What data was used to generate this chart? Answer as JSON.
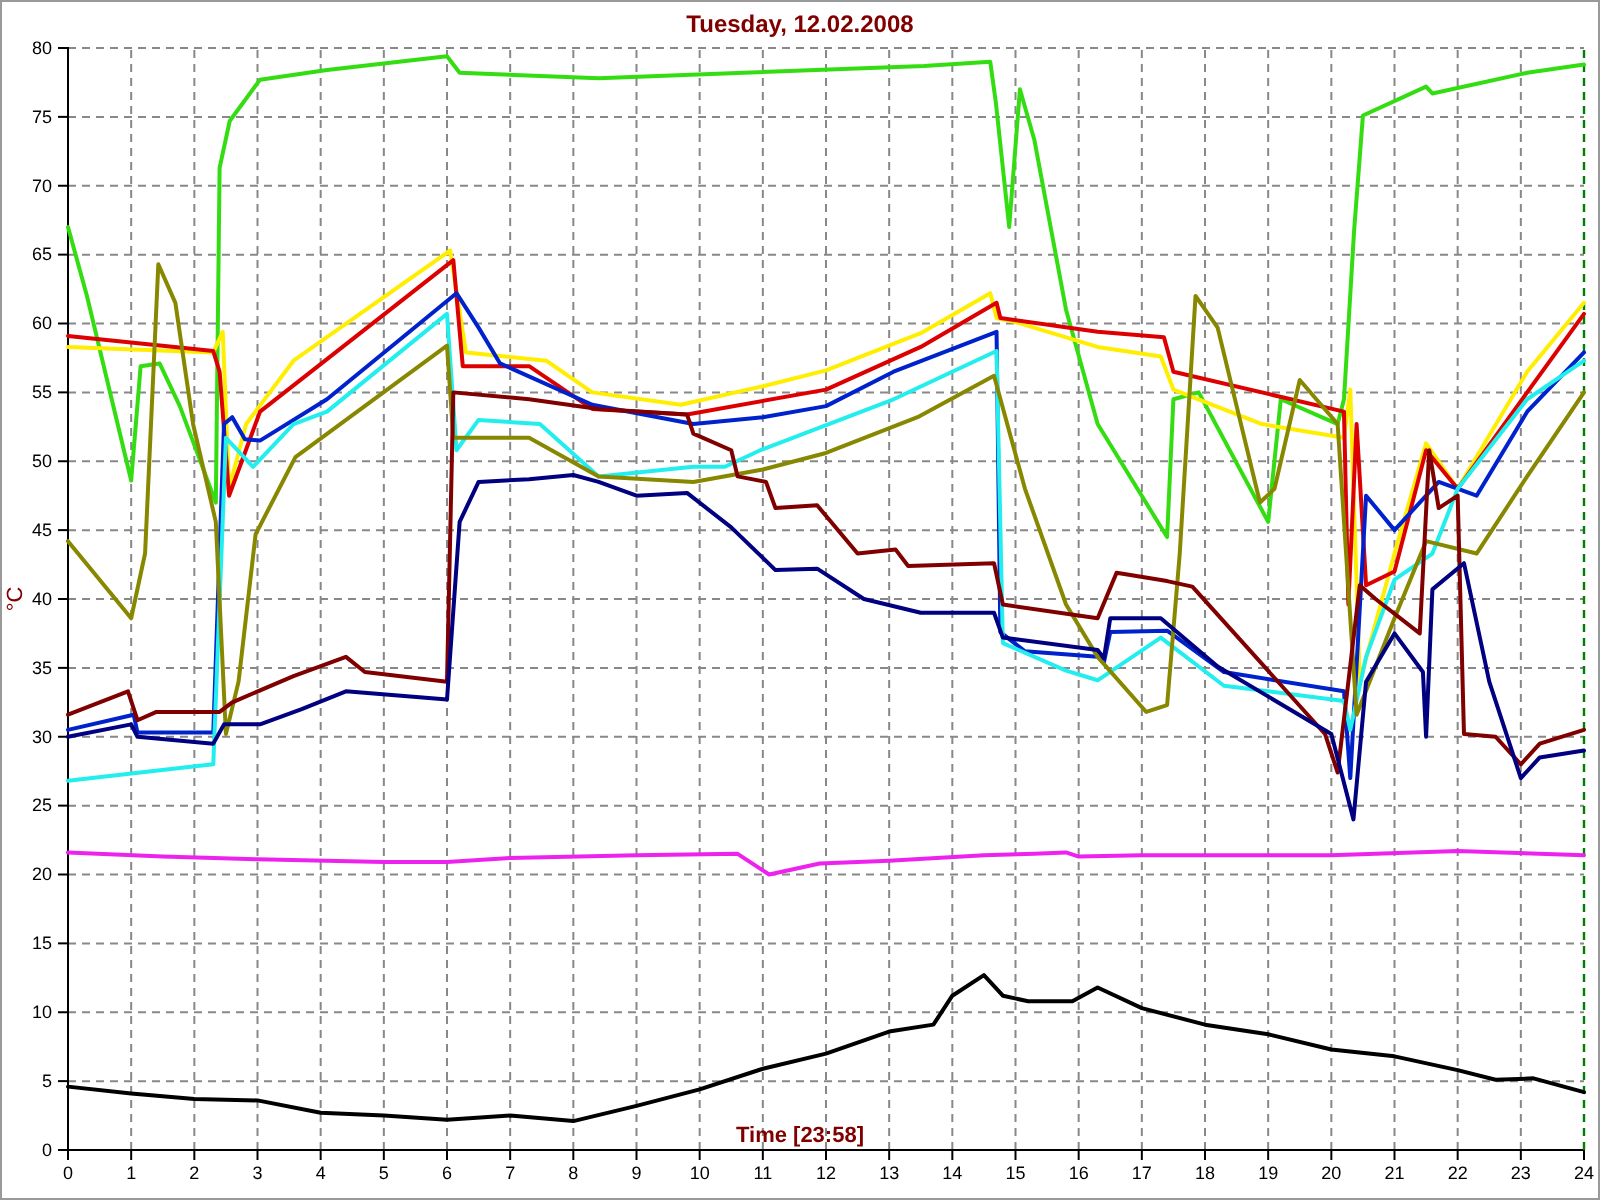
{
  "chart_data": {
    "type": "line",
    "title": "Tuesday, 12.02.2008",
    "xlabel": "Time [23:58]",
    "ylabel": "°C",
    "xlim": [
      0,
      24
    ],
    "xticks": [
      0,
      1,
      2,
      3,
      4,
      5,
      6,
      7,
      8,
      9,
      10,
      11,
      12,
      13,
      14,
      15,
      16,
      17,
      18,
      19,
      20,
      21,
      22,
      23,
      24
    ],
    "ylim": [
      0,
      80
    ],
    "yticks": [
      0,
      5,
      10,
      15,
      20,
      25,
      30,
      35,
      40,
      45,
      50,
      55,
      60,
      65,
      70,
      75,
      80
    ],
    "grid": true,
    "marker": "none",
    "line_style": "solid",
    "ref_lines": [
      {
        "axis": "x",
        "value": 24,
        "color": "#008000",
        "line_style": "dashed"
      }
    ],
    "series": [
      {
        "color": "#33dd11",
        "x": [
          0,
          0.3,
          1.0,
          1.15,
          1.45,
          1.77,
          2.34,
          2.4,
          2.56,
          3.04,
          4.1,
          6.0,
          6.2,
          8.4,
          13.55,
          14.6,
          14.69,
          14.9,
          15.07,
          15.3,
          15.8,
          16.3,
          17.4,
          17.5,
          17.9,
          19.0,
          19.2,
          20.1,
          20.2,
          20.36,
          20.5,
          21.5,
          21.6,
          23.1,
          24
        ],
        "values": [
          67,
          62,
          48.6,
          56.9,
          57.1,
          54,
          47,
          71.3,
          74.7,
          77.7,
          78.4,
          79.4,
          78.2,
          77.8,
          78.7,
          79,
          76,
          67,
          77,
          73.3,
          61,
          52.7,
          44.5,
          54.5,
          55,
          45.6,
          54.5,
          52.7,
          54.5,
          66.7,
          75.1,
          77.2,
          76.7,
          78.2,
          78.8
        ]
      },
      {
        "color": "#ffee00",
        "x": [
          0,
          2.3,
          2.45,
          2.55,
          2.82,
          3.57,
          6.05,
          6.3,
          7.57,
          8.3,
          9.7,
          11.05,
          12,
          13.5,
          14.6,
          14.7,
          15,
          16.3,
          17.3,
          17.5,
          18.9,
          20.2,
          20.3,
          20.45,
          21,
          21.5,
          22,
          23.1,
          24
        ],
        "values": [
          58.3,
          57.9,
          59.4,
          48,
          52.7,
          57.3,
          65.3,
          57.9,
          57.3,
          55,
          54.1,
          55.5,
          56.6,
          59.3,
          62.2,
          60.4,
          60.1,
          58.3,
          57.6,
          55.2,
          52.7,
          51.7,
          55.2,
          34,
          43.3,
          51.3,
          48,
          56.5,
          61.5
        ]
      },
      {
        "color": "#dd0000",
        "x": [
          0,
          2.3,
          2.4,
          2.55,
          3.04,
          6.1,
          6.25,
          7.3,
          8.3,
          9.8,
          12,
          13.5,
          14.7,
          14.76,
          16.3,
          17.35,
          17.5,
          20.2,
          20.27,
          20.4,
          20.55,
          21,
          21.5,
          22,
          23.1,
          24
        ],
        "values": [
          59.1,
          58,
          56.5,
          47.5,
          53.6,
          64.6,
          56.9,
          56.9,
          53.8,
          53.4,
          55.2,
          58.3,
          61.5,
          60.4,
          59.4,
          59,
          56.5,
          53.6,
          39.6,
          52.7,
          41,
          42,
          50.8,
          48,
          55,
          60.7
        ]
      },
      {
        "color": "#0022cc",
        "x": [
          0,
          1.04,
          1.1,
          2.3,
          2.47,
          2.6,
          2.8,
          3.04,
          4.1,
          6.15,
          6.5,
          6.84,
          8.3,
          9.9,
          11,
          12,
          13.07,
          14.7,
          14.76,
          15.15,
          16.3,
          16.4,
          16.5,
          17.4,
          18.3,
          20.2,
          20.3,
          20.55,
          21,
          21.7,
          22.3,
          23.1,
          24
        ],
        "values": [
          30.5,
          31.6,
          30.3,
          30.3,
          52.7,
          53.2,
          51.6,
          51.5,
          54.5,
          62.2,
          59.7,
          57.1,
          54.1,
          52.7,
          53.2,
          54,
          56.5,
          59.4,
          37.6,
          36.2,
          35.8,
          35.4,
          37.6,
          37.7,
          34.7,
          33.3,
          27,
          47.5,
          45,
          48.5,
          47.5,
          53.6,
          57.9
        ]
      },
      {
        "color": "#22eeee",
        "x": [
          0,
          1.7,
          2.3,
          2.5,
          2.93,
          3.57,
          4.1,
          6.0,
          6.15,
          6.5,
          7.47,
          8.4,
          9.9,
          10.4,
          10.96,
          13.07,
          14.7,
          14.8,
          15.8,
          16.3,
          16.4,
          17.3,
          18.3,
          20.2,
          20.3,
          20.55,
          21,
          21.6,
          22,
          23.1,
          24
        ],
        "values": [
          26.8,
          27.7,
          28,
          51.7,
          49.6,
          52.7,
          53.6,
          60.7,
          50.8,
          53,
          52.7,
          48.9,
          49.6,
          49.6,
          50.8,
          54.5,
          58,
          36.8,
          34.8,
          34.1,
          34.4,
          37.2,
          33.7,
          32.6,
          30.5,
          35.8,
          41.4,
          43.3,
          48,
          54.5,
          57.3
        ]
      },
      {
        "color": "#888800",
        "x": [
          0,
          1.0,
          1.22,
          1.43,
          1.7,
          1.98,
          2.34,
          2.5,
          2.7,
          2.97,
          3.6,
          6.0,
          6.1,
          7.3,
          8.4,
          9.9,
          11,
          12,
          13.45,
          14.66,
          15.15,
          15.8,
          16.3,
          17.07,
          17.4,
          17.6,
          17.85,
          18.2,
          18.87,
          19.1,
          19.5,
          20.1,
          20.4,
          21,
          21.5,
          22.3,
          23.1,
          24
        ],
        "values": [
          44.2,
          38.6,
          43.3,
          64.3,
          61.5,
          52.7,
          45.6,
          30.2,
          34,
          44.7,
          50.3,
          58.4,
          51.7,
          51.7,
          48.9,
          48.5,
          49.4,
          50.6,
          53.2,
          56.2,
          48,
          39.6,
          35.8,
          31.8,
          32.3,
          43.3,
          62,
          59.7,
          47,
          48,
          55.9,
          52.7,
          31.6,
          38.6,
          44.2,
          43.3,
          48.9,
          55
        ]
      },
      {
        "color": "#800000",
        "x": [
          0,
          0.95,
          1.1,
          1.4,
          2.4,
          2.6,
          3.57,
          4.4,
          4.7,
          6.0,
          6.1,
          7.3,
          8.4,
          9.8,
          9.9,
          10.5,
          10.6,
          11.05,
          11.2,
          11.86,
          12.5,
          13.1,
          13.3,
          14.66,
          14.8,
          16.3,
          16.6,
          17.4,
          17.8,
          19.9,
          20.1,
          20.45,
          20.7,
          21.4,
          21.55,
          21.7,
          22,
          22.1,
          22.6,
          23,
          23.3,
          24
        ],
        "values": [
          31.6,
          33.3,
          31.2,
          31.8,
          31.8,
          32.5,
          34.4,
          35.8,
          34.7,
          34,
          55,
          54.5,
          53.8,
          53.4,
          52,
          50.8,
          48.9,
          48.5,
          46.6,
          46.8,
          43.3,
          43.6,
          42.4,
          42.6,
          39.6,
          38.6,
          41.9,
          41.3,
          40.9,
          30.2,
          27.4,
          41,
          40,
          37.5,
          50.8,
          46.6,
          47.5,
          30.2,
          30,
          28,
          29.5,
          30.5
        ]
      },
      {
        "color": "#000080",
        "x": [
          0,
          1.0,
          1.1,
          2.3,
          2.47,
          3.04,
          3.7,
          4.4,
          6.0,
          6.2,
          6.5,
          7.3,
          8.0,
          8.4,
          9.0,
          9.8,
          10.5,
          11.2,
          11.86,
          12.6,
          13.5,
          14.66,
          14.8,
          16.3,
          16.4,
          16.5,
          17.3,
          18.2,
          20,
          20.35,
          20.55,
          21,
          21.45,
          21.5,
          21.6,
          22.1,
          22.5,
          23,
          23.3,
          24
        ],
        "values": [
          30,
          30.9,
          30,
          29.5,
          30.9,
          30.9,
          32,
          33.3,
          32.7,
          45.6,
          48.5,
          48.7,
          49,
          48.5,
          47.5,
          47.7,
          45.2,
          42.1,
          42.2,
          40,
          39,
          39,
          37.2,
          36.3,
          35.7,
          38.6,
          38.6,
          35.1,
          30.2,
          24,
          34,
          37.5,
          34.7,
          30,
          40.7,
          42.6,
          34,
          27,
          28.5,
          29
        ]
      },
      {
        "color": "#ee22ee",
        "x": [
          0,
          1.5,
          3,
          5,
          6,
          7,
          9,
          10.6,
          11.1,
          11.9,
          13,
          14.5,
          15.3,
          15.8,
          16,
          17,
          20,
          22,
          24
        ],
        "values": [
          21.6,
          21.3,
          21.1,
          20.9,
          20.9,
          21.2,
          21.4,
          21.5,
          20,
          20.8,
          21,
          21.4,
          21.5,
          21.6,
          21.3,
          21.4,
          21.4,
          21.7,
          21.4
        ]
      },
      {
        "color": "#000000",
        "x": [
          0,
          1,
          2,
          3,
          4,
          5,
          6,
          7,
          8,
          9,
          10,
          11,
          12,
          13,
          13.7,
          14,
          14.5,
          14.8,
          15.2,
          15.9,
          16.3,
          17,
          18,
          19,
          20,
          21,
          22,
          22.6,
          23.2,
          24
        ],
        "values": [
          4.6,
          4.1,
          3.7,
          3.6,
          2.7,
          2.5,
          2.2,
          2.5,
          2.1,
          3.2,
          4.4,
          5.9,
          7,
          8.6,
          9.1,
          11.2,
          12.7,
          11.2,
          10.8,
          10.8,
          11.8,
          10.3,
          9.1,
          8.4,
          7.3,
          6.8,
          5.8,
          5.1,
          5.2,
          4.2
        ]
      }
    ]
  }
}
